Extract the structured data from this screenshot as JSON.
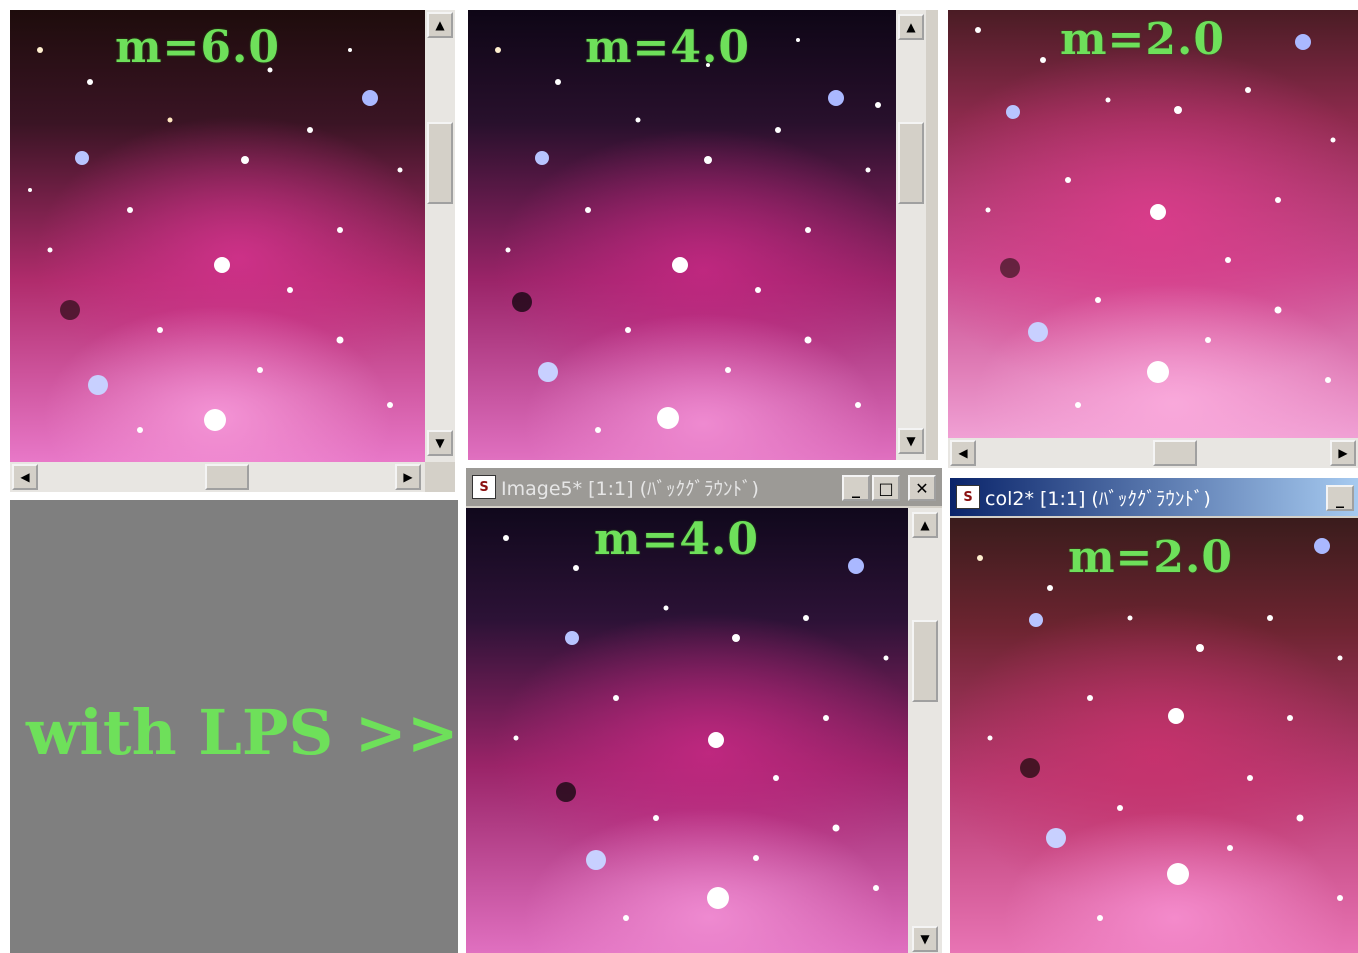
{
  "panels": {
    "p1": {
      "label": "m=6.0"
    },
    "p2": {
      "label": "m=4.0"
    },
    "p3": {
      "label": "m=2.0"
    },
    "p4": {
      "label": "m=4.0",
      "title": "Image5* [1:1] (ﾊﾞｯｸｸﾞﾗｳﾝﾄﾞ)"
    },
    "p5": {
      "label": "m=2.0",
      "title": "col2* [1:1] (ﾊﾞｯｸｸﾞﾗｳﾝﾄﾞ)"
    }
  },
  "annotation": {
    "text": "with LPS >>"
  },
  "colors": {
    "label_green": "#6ee05a",
    "nebula_pink": "#d8388f",
    "background_gray": "#7f7f7f",
    "active_title": "#0a246a"
  },
  "icons": {
    "scroll_up": "▲",
    "scroll_down": "▼",
    "scroll_left": "◀",
    "scroll_right": "▶",
    "minimize": "_",
    "maximize": "□",
    "close": "✕",
    "app": "S"
  }
}
